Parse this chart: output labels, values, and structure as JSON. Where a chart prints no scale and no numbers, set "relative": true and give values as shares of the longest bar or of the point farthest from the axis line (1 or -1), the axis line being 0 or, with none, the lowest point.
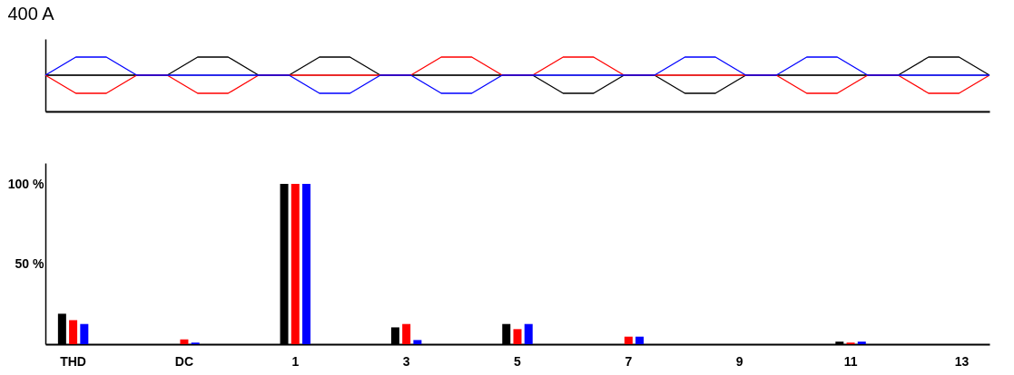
{
  "chart_data": [
    {
      "type": "line",
      "relative": true,
      "ylabel": "400 A",
      "ref_lines": [
        {
          "axis": "y",
          "value": 0,
          "color": "#555555"
        }
      ],
      "categories": [
        null,
        null,
        null,
        null,
        null,
        null,
        null,
        null,
        null,
        null,
        null,
        null,
        null,
        null,
        null,
        null,
        null,
        null,
        null,
        null,
        null,
        null,
        null,
        null,
        null,
        null,
        null,
        null,
        null,
        null,
        null,
        null
      ],
      "series": [
        {
          "color": "#000000",
          "values": [
            0,
            0,
            0,
            0,
            0,
            1,
            1,
            0,
            0,
            1,
            1,
            0,
            0,
            0,
            0,
            0,
            0,
            -1,
            -1,
            0,
            0,
            -1,
            -1,
            0,
            0,
            0,
            0,
            0,
            0,
            1,
            1,
            0
          ]
        },
        {
          "color": "#ff0000",
          "values": [
            0,
            -1,
            -1,
            0,
            0,
            -1,
            -1,
            0,
            0,
            0,
            0,
            0,
            0,
            1,
            1,
            0,
            0,
            1,
            1,
            0,
            0,
            0,
            0,
            0,
            0,
            -1,
            -1,
            0,
            0,
            -1,
            -1,
            0
          ]
        },
        {
          "color": "#0000ff",
          "values": [
            0,
            1,
            1,
            0,
            0,
            0,
            0,
            0,
            0,
            -1,
            -1,
            0,
            0,
            -1,
            -1,
            0,
            0,
            0,
            0,
            0,
            0,
            1,
            1,
            0,
            0,
            1,
            1,
            0,
            0,
            0,
            0,
            0
          ]
        }
      ]
    },
    {
      "type": "bar",
      "categories": [
        "THD",
        "DC",
        "1",
        "3",
        "5",
        "7",
        "9",
        "11",
        "13"
      ],
      "ylim": [
        0,
        113
      ],
      "yticks": [
        {
          "value": 50,
          "label": "50 %"
        },
        {
          "value": 100,
          "label": "100 %"
        }
      ],
      "series": [
        {
          "color": "#000000",
          "values": [
            19,
            0,
            100,
            10.5,
            12.6,
            0,
            0,
            1.6,
            0
          ]
        },
        {
          "color": "#ff0000",
          "values": [
            15,
            3,
            100,
            12.6,
            9.4,
            4.7,
            0,
            1,
            0
          ]
        },
        {
          "color": "#0000ff",
          "values": [
            12.6,
            1,
            100,
            2.6,
            12.6,
            4.7,
            0,
            1.6,
            0
          ]
        }
      ]
    }
  ]
}
